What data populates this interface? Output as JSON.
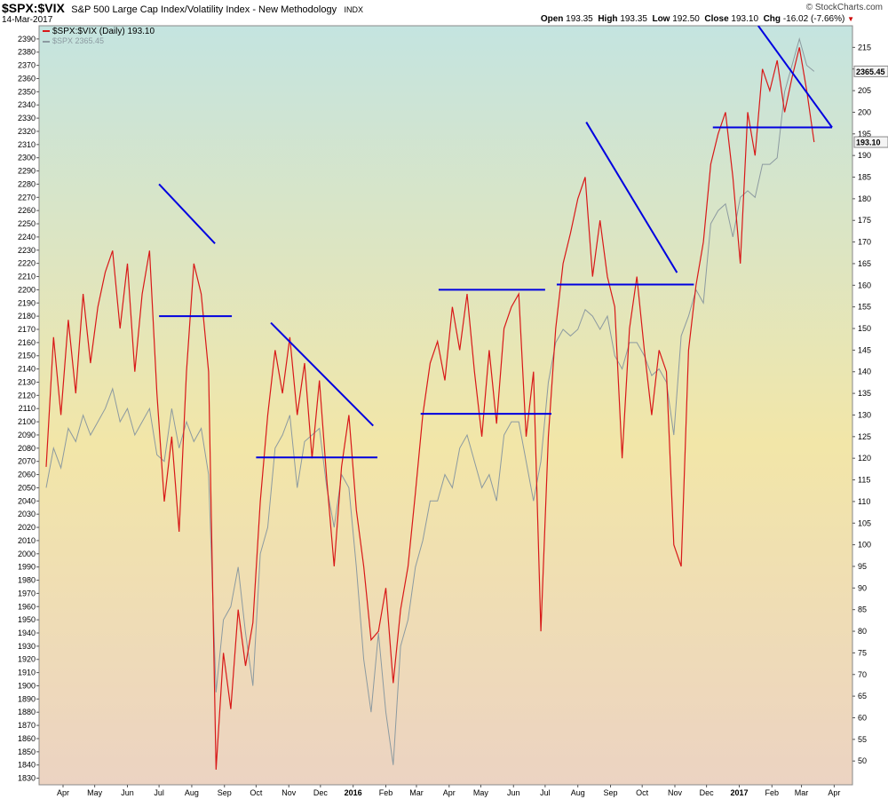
{
  "header": {
    "symbol": "$SPX:$VIX",
    "title": "S&P 500 Large Cap Index/Volatility Index - New Methodology",
    "exchange": "INDX",
    "date": "14-Mar-2017",
    "brand": "© StockCharts.com",
    "ohlc": [
      {
        "label": "Open",
        "value": "193.35"
      },
      {
        "label": "High",
        "value": "193.35"
      },
      {
        "label": "Low",
        "value": "192.50"
      },
      {
        "label": "Close",
        "value": "193.10"
      },
      {
        "label": "Chg",
        "value": "-16.02 (-7.66%)"
      }
    ],
    "down_arrow": "▼"
  },
  "legend": {
    "ratio": "$SPX:$VIX (Daily) 193.10",
    "spx": "$SPX 2365.45"
  },
  "last_values": {
    "spx": "2365.45",
    "ratio": "193.10"
  },
  "colors": {
    "ratio": "#d81818",
    "spx": "#8c9aa0",
    "trendline": "#0000e0",
    "bg_top": "#c4e4e0",
    "bg_mid": "#f2e6a8",
    "bg_bottom": "#ecd3c2",
    "arrow": "#cc0000"
  },
  "chart_data": {
    "type": "line",
    "x_start": "2015-03-16",
    "x_end": "2017-03-14",
    "x_labels": [
      "Apr",
      "May",
      "Jun",
      "Jul",
      "Aug",
      "Sep",
      "Oct",
      "Nov",
      "Dec",
      "2016",
      "Feb",
      "Mar",
      "Apr",
      "May",
      "Jun",
      "Jul",
      "Aug",
      "Sep",
      "Oct",
      "Nov",
      "Dec",
      "2017",
      "Feb",
      "Mar",
      "Apr"
    ],
    "x_label_dates": [
      "2015-04-01",
      "2015-05-01",
      "2015-06-01",
      "2015-07-01",
      "2015-08-01",
      "2015-09-01",
      "2015-10-01",
      "2015-11-01",
      "2015-12-01",
      "2016-01-01",
      "2016-02-01",
      "2016-03-01",
      "2016-04-01",
      "2016-05-01",
      "2016-06-01",
      "2016-07-01",
      "2016-08-01",
      "2016-09-01",
      "2016-10-01",
      "2016-11-01",
      "2016-12-01",
      "2017-01-01",
      "2017-02-01",
      "2017-03-01",
      "2017-04-01"
    ],
    "left_axis": {
      "min": 1825,
      "max": 2400,
      "ticks": [
        1830,
        1840,
        1850,
        1860,
        1870,
        1880,
        1890,
        1900,
        1910,
        1920,
        1930,
        1940,
        1950,
        1960,
        1970,
        1980,
        1990,
        2000,
        2010,
        2020,
        2030,
        2040,
        2050,
        2060,
        2070,
        2080,
        2090,
        2100,
        2110,
        2120,
        2130,
        2140,
        2150,
        2160,
        2170,
        2180,
        2190,
        2200,
        2210,
        2220,
        2230,
        2240,
        2250,
        2260,
        2270,
        2280,
        2290,
        2300,
        2310,
        2320,
        2330,
        2340,
        2350,
        2360,
        2370,
        2380,
        2390
      ]
    },
    "right_axis": {
      "min": 44.5,
      "max": 220,
      "ticks": [
        50,
        55,
        60,
        65,
        70,
        75,
        80,
        85,
        90,
        95,
        100,
        105,
        110,
        115,
        120,
        125,
        130,
        135,
        140,
        145,
        150,
        155,
        160,
        165,
        170,
        175,
        180,
        185,
        190,
        195,
        200,
        205,
        210,
        215
      ]
    },
    "series": [
      {
        "name": "$SPX:$VIX (Daily)",
        "axis": "right",
        "points": [
          [
            "2015-03-16",
            118
          ],
          [
            "2015-03-23",
            148
          ],
          [
            "2015-03-30",
            130
          ],
          [
            "2015-04-06",
            152
          ],
          [
            "2015-04-13",
            135
          ],
          [
            "2015-04-20",
            158
          ],
          [
            "2015-04-27",
            142
          ],
          [
            "2015-05-04",
            155
          ],
          [
            "2015-05-11",
            163
          ],
          [
            "2015-05-18",
            168
          ],
          [
            "2015-05-25",
            150
          ],
          [
            "2015-06-01",
            165
          ],
          [
            "2015-06-08",
            140
          ],
          [
            "2015-06-15",
            158
          ],
          [
            "2015-06-22",
            168
          ],
          [
            "2015-06-29",
            135
          ],
          [
            "2015-07-06",
            110
          ],
          [
            "2015-07-13",
            125
          ],
          [
            "2015-07-20",
            103
          ],
          [
            "2015-07-27",
            140
          ],
          [
            "2015-08-03",
            165
          ],
          [
            "2015-08-10",
            158
          ],
          [
            "2015-08-17",
            140
          ],
          [
            "2015-08-24",
            48
          ],
          [
            "2015-08-31",
            75
          ],
          [
            "2015-09-07",
            62
          ],
          [
            "2015-09-14",
            85
          ],
          [
            "2015-09-21",
            72
          ],
          [
            "2015-09-28",
            82
          ],
          [
            "2015-10-05",
            110
          ],
          [
            "2015-10-12",
            130
          ],
          [
            "2015-10-19",
            145
          ],
          [
            "2015-10-26",
            135
          ],
          [
            "2015-11-02",
            148
          ],
          [
            "2015-11-09",
            130
          ],
          [
            "2015-11-16",
            142
          ],
          [
            "2015-11-23",
            120
          ],
          [
            "2015-11-30",
            138
          ],
          [
            "2015-12-07",
            115
          ],
          [
            "2015-12-14",
            95
          ],
          [
            "2015-12-21",
            118
          ],
          [
            "2015-12-28",
            130
          ],
          [
            "2016-01-04",
            108
          ],
          [
            "2016-01-11",
            95
          ],
          [
            "2016-01-18",
            78
          ],
          [
            "2016-01-25",
            80
          ],
          [
            "2016-02-01",
            90
          ],
          [
            "2016-02-08",
            68
          ],
          [
            "2016-02-15",
            85
          ],
          [
            "2016-02-22",
            95
          ],
          [
            "2016-02-29",
            112
          ],
          [
            "2016-03-07",
            130
          ],
          [
            "2016-03-14",
            142
          ],
          [
            "2016-03-21",
            147
          ],
          [
            "2016-03-28",
            138
          ],
          [
            "2016-04-04",
            155
          ],
          [
            "2016-04-11",
            145
          ],
          [
            "2016-04-18",
            158
          ],
          [
            "2016-04-25",
            140
          ],
          [
            "2016-05-02",
            125
          ],
          [
            "2016-05-09",
            145
          ],
          [
            "2016-05-16",
            128
          ],
          [
            "2016-05-23",
            150
          ],
          [
            "2016-05-30",
            155
          ],
          [
            "2016-06-06",
            158
          ],
          [
            "2016-06-13",
            125
          ],
          [
            "2016-06-20",
            140
          ],
          [
            "2016-06-27",
            80
          ],
          [
            "2016-07-04",
            125
          ],
          [
            "2016-07-11",
            150
          ],
          [
            "2016-07-18",
            165
          ],
          [
            "2016-07-25",
            172
          ],
          [
            "2016-08-01",
            180
          ],
          [
            "2016-08-08",
            185
          ],
          [
            "2016-08-15",
            162
          ],
          [
            "2016-08-22",
            175
          ],
          [
            "2016-08-29",
            162
          ],
          [
            "2016-09-05",
            155
          ],
          [
            "2016-09-12",
            120
          ],
          [
            "2016-09-19",
            150
          ],
          [
            "2016-09-26",
            162
          ],
          [
            "2016-10-03",
            145
          ],
          [
            "2016-10-10",
            130
          ],
          [
            "2016-10-17",
            145
          ],
          [
            "2016-10-24",
            140
          ],
          [
            "2016-10-31",
            100
          ],
          [
            "2016-11-07",
            95
          ],
          [
            "2016-11-14",
            145
          ],
          [
            "2016-11-21",
            160
          ],
          [
            "2016-11-28",
            170
          ],
          [
            "2016-12-05",
            188
          ],
          [
            "2016-12-12",
            195
          ],
          [
            "2016-12-19",
            200
          ],
          [
            "2016-12-26",
            185
          ],
          [
            "2017-01-02",
            165
          ],
          [
            "2017-01-09",
            200
          ],
          [
            "2017-01-16",
            190
          ],
          [
            "2017-01-23",
            210
          ],
          [
            "2017-01-30",
            205
          ],
          [
            "2017-02-06",
            212
          ],
          [
            "2017-02-13",
            200
          ],
          [
            "2017-02-20",
            208
          ],
          [
            "2017-02-27",
            215
          ],
          [
            "2017-03-06",
            205
          ],
          [
            "2017-03-13",
            193.1
          ]
        ]
      },
      {
        "name": "$SPX",
        "axis": "left",
        "points": [
          [
            "2015-03-16",
            2050
          ],
          [
            "2015-03-23",
            2080
          ],
          [
            "2015-03-30",
            2065
          ],
          [
            "2015-04-06",
            2095
          ],
          [
            "2015-04-13",
            2085
          ],
          [
            "2015-04-20",
            2105
          ],
          [
            "2015-04-27",
            2090
          ],
          [
            "2015-05-04",
            2100
          ],
          [
            "2015-05-11",
            2110
          ],
          [
            "2015-05-18",
            2125
          ],
          [
            "2015-05-25",
            2100
          ],
          [
            "2015-06-01",
            2110
          ],
          [
            "2015-06-08",
            2090
          ],
          [
            "2015-06-15",
            2100
          ],
          [
            "2015-06-22",
            2110
          ],
          [
            "2015-06-29",
            2075
          ],
          [
            "2015-07-06",
            2070
          ],
          [
            "2015-07-13",
            2110
          ],
          [
            "2015-07-20",
            2080
          ],
          [
            "2015-07-27",
            2100
          ],
          [
            "2015-08-03",
            2085
          ],
          [
            "2015-08-10",
            2095
          ],
          [
            "2015-08-17",
            2060
          ],
          [
            "2015-08-24",
            1895
          ],
          [
            "2015-08-31",
            1950
          ],
          [
            "2015-09-07",
            1960
          ],
          [
            "2015-09-14",
            1990
          ],
          [
            "2015-09-21",
            1940
          ],
          [
            "2015-09-28",
            1900
          ],
          [
            "2015-10-05",
            2000
          ],
          [
            "2015-10-12",
            2020
          ],
          [
            "2015-10-19",
            2080
          ],
          [
            "2015-10-26",
            2090
          ],
          [
            "2015-11-02",
            2105
          ],
          [
            "2015-11-09",
            2050
          ],
          [
            "2015-11-16",
            2085
          ],
          [
            "2015-11-23",
            2090
          ],
          [
            "2015-11-30",
            2095
          ],
          [
            "2015-12-07",
            2050
          ],
          [
            "2015-12-14",
            2020
          ],
          [
            "2015-12-21",
            2060
          ],
          [
            "2015-12-28",
            2050
          ],
          [
            "2016-01-04",
            1990
          ],
          [
            "2016-01-11",
            1920
          ],
          [
            "2016-01-18",
            1880
          ],
          [
            "2016-01-25",
            1940
          ],
          [
            "2016-02-01",
            1880
          ],
          [
            "2016-02-08",
            1840
          ],
          [
            "2016-02-15",
            1930
          ],
          [
            "2016-02-22",
            1950
          ],
          [
            "2016-02-29",
            1990
          ],
          [
            "2016-03-07",
            2010
          ],
          [
            "2016-03-14",
            2040
          ],
          [
            "2016-03-21",
            2040
          ],
          [
            "2016-03-28",
            2060
          ],
          [
            "2016-04-04",
            2050
          ],
          [
            "2016-04-11",
            2080
          ],
          [
            "2016-04-18",
            2090
          ],
          [
            "2016-04-25",
            2070
          ],
          [
            "2016-05-02",
            2050
          ],
          [
            "2016-05-09",
            2060
          ],
          [
            "2016-05-16",
            2040
          ],
          [
            "2016-05-23",
            2090
          ],
          [
            "2016-05-30",
            2100
          ],
          [
            "2016-06-06",
            2100
          ],
          [
            "2016-06-13",
            2070
          ],
          [
            "2016-06-20",
            2040
          ],
          [
            "2016-06-27",
            2070
          ],
          [
            "2016-07-04",
            2130
          ],
          [
            "2016-07-11",
            2160
          ],
          [
            "2016-07-18",
            2170
          ],
          [
            "2016-07-25",
            2165
          ],
          [
            "2016-08-01",
            2170
          ],
          [
            "2016-08-08",
            2185
          ],
          [
            "2016-08-15",
            2180
          ],
          [
            "2016-08-22",
            2170
          ],
          [
            "2016-08-29",
            2180
          ],
          [
            "2016-09-05",
            2150
          ],
          [
            "2016-09-12",
            2140
          ],
          [
            "2016-09-19",
            2160
          ],
          [
            "2016-09-26",
            2160
          ],
          [
            "2016-10-03",
            2150
          ],
          [
            "2016-10-10",
            2135
          ],
          [
            "2016-10-17",
            2140
          ],
          [
            "2016-10-24",
            2130
          ],
          [
            "2016-10-31",
            2090
          ],
          [
            "2016-11-07",
            2165
          ],
          [
            "2016-11-14",
            2180
          ],
          [
            "2016-11-21",
            2200
          ],
          [
            "2016-11-28",
            2190
          ],
          [
            "2016-12-05",
            2250
          ],
          [
            "2016-12-12",
            2260
          ],
          [
            "2016-12-19",
            2265
          ],
          [
            "2016-12-26",
            2240
          ],
          [
            "2017-01-02",
            2270
          ],
          [
            "2017-01-09",
            2275
          ],
          [
            "2017-01-16",
            2270
          ],
          [
            "2017-01-23",
            2295
          ],
          [
            "2017-01-30",
            2295
          ],
          [
            "2017-02-06",
            2300
          ],
          [
            "2017-02-13",
            2350
          ],
          [
            "2017-02-20",
            2370
          ],
          [
            "2017-02-27",
            2390
          ],
          [
            "2017-03-06",
            2370
          ],
          [
            "2017-03-13",
            2365.45
          ]
        ]
      }
    ],
    "trendlines": [
      {
        "kind": "down",
        "from": [
          "2015-07-01",
          2280
        ],
        "to": [
          "2015-08-23",
          2235
        ]
      },
      {
        "kind": "horizontal",
        "from": [
          "2015-07-01",
          2180
        ],
        "to": [
          "2015-09-08",
          2180
        ]
      },
      {
        "kind": "down",
        "from": [
          "2015-10-15",
          2175
        ],
        "to": [
          "2016-01-20",
          2097
        ]
      },
      {
        "kind": "horizontal",
        "from": [
          "2015-10-01",
          2073
        ],
        "to": [
          "2016-01-24",
          2073
        ]
      },
      {
        "kind": "horizontal",
        "from": [
          "2016-03-22",
          2200
        ],
        "to": [
          "2016-07-01",
          2200
        ]
      },
      {
        "kind": "horizontal",
        "from": [
          "2016-03-05",
          2106
        ],
        "to": [
          "2016-07-07",
          2106
        ]
      },
      {
        "kind": "down",
        "from": [
          "2016-08-09",
          2327
        ],
        "to": [
          "2016-11-03",
          2213
        ]
      },
      {
        "kind": "horizontal",
        "from": [
          "2016-07-12",
          2204
        ],
        "to": [
          "2016-11-19",
          2204
        ]
      },
      {
        "kind": "down",
        "from": [
          "2017-01-19",
          2400
        ],
        "to": [
          "2017-03-30",
          2323
        ]
      },
      {
        "kind": "horizontal",
        "from": [
          "2016-12-07",
          2323
        ],
        "to": [
          "2017-03-30",
          2323
        ]
      }
    ],
    "grid": false,
    "legend_position": "top-left"
  }
}
